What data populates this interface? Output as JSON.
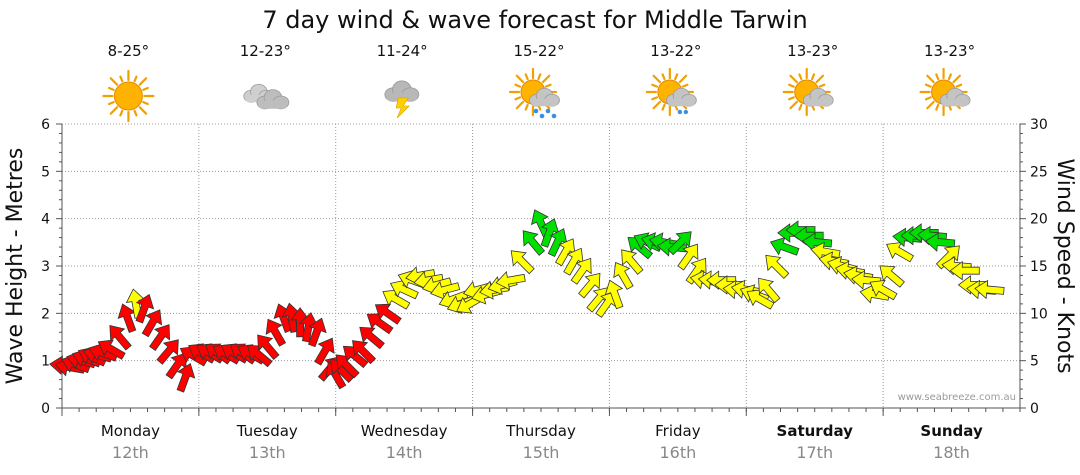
{
  "page": {
    "site_credit": "www.seabreeze.com.au"
  },
  "chart_data": {
    "type": "arrow-series",
    "title": "7 day wind & wave forecast for Middle Tarwin",
    "ylabel_left": "Wave Height - Metres",
    "ylabel_right": "Wind Speed - Knots",
    "left_axis": {
      "range": [
        0,
        6
      ],
      "ticks": [
        "0",
        "1",
        "2",
        "3",
        "4",
        "5",
        "6"
      ]
    },
    "right_axis": {
      "range": [
        0,
        30
      ],
      "ticks": [
        "0",
        "5",
        "10",
        "15",
        "20",
        "25",
        "30"
      ]
    },
    "days": [
      {
        "name": "Monday",
        "date": "12th",
        "temp": "8-25°",
        "icon": "sunny-icon",
        "bold": false
      },
      {
        "name": "Tuesday",
        "date": "13th",
        "temp": "12-23°",
        "icon": "cloudy-icon",
        "bold": false
      },
      {
        "name": "Wednesday",
        "date": "14th",
        "temp": "11-24°",
        "icon": "thunderstorm-icon",
        "bold": false
      },
      {
        "name": "Thursday",
        "date": "15th",
        "temp": "15-22°",
        "icon": "showers-icon",
        "bold": false
      },
      {
        "name": "Friday",
        "date": "16th",
        "temp": "13-22°",
        "icon": "light-rain-icon",
        "bold": false
      },
      {
        "name": "Saturday",
        "date": "17th",
        "temp": "13-23°",
        "icon": "partly-cloudy-icon",
        "bold": true
      },
      {
        "name": "Sunday",
        "date": "18th",
        "temp": "13-23°",
        "icon": "partly-cloudy-icon",
        "bold": true
      }
    ],
    "wind_color_scale": {
      "light": "#ff0000",
      "moderate": "#ffff00",
      "strong": "#00e000"
    },
    "wind_series": [
      {
        "t": 0.02,
        "kn": 4.5,
        "dir": 95
      },
      {
        "t": 0.06,
        "kn": 4.3,
        "dir": 100
      },
      {
        "t": 0.1,
        "kn": 4.6,
        "dir": 110
      },
      {
        "t": 0.14,
        "kn": 5.0,
        "dir": 105
      },
      {
        "t": 0.18,
        "kn": 5.2,
        "dir": 110
      },
      {
        "t": 0.22,
        "kn": 5.4,
        "dir": 115
      },
      {
        "t": 0.26,
        "kn": 5.6,
        "dir": 105
      },
      {
        "t": 0.3,
        "kn": 5.8,
        "dir": 110
      },
      {
        "t": 0.36,
        "kn": 6.2,
        "dir": 120
      },
      {
        "t": 0.42,
        "kn": 7.5,
        "dir": 140
      },
      {
        "t": 0.48,
        "kn": 9.5,
        "dir": 160
      },
      {
        "t": 0.54,
        "kn": 11.0,
        "dir": 170
      },
      {
        "t": 0.6,
        "kn": 10.5,
        "dir": 200
      },
      {
        "t": 0.66,
        "kn": 9.0,
        "dir": 210
      },
      {
        "t": 0.72,
        "kn": 7.5,
        "dir": 215
      },
      {
        "t": 0.78,
        "kn": 6.0,
        "dir": 220
      },
      {
        "t": 0.84,
        "kn": 4.5,
        "dir": 215
      },
      {
        "t": 0.9,
        "kn": 3.2,
        "dir": 200
      },
      {
        "t": 0.96,
        "kn": 5.5,
        "dir": 120
      },
      {
        "t": 1.02,
        "kn": 5.8,
        "dir": 120
      },
      {
        "t": 1.08,
        "kn": 5.8,
        "dir": 120
      },
      {
        "t": 1.14,
        "kn": 5.8,
        "dir": 125
      },
      {
        "t": 1.2,
        "kn": 5.7,
        "dir": 120
      },
      {
        "t": 1.26,
        "kn": 5.8,
        "dir": 120
      },
      {
        "t": 1.32,
        "kn": 5.8,
        "dir": 125
      },
      {
        "t": 1.38,
        "kn": 5.7,
        "dir": 120
      },
      {
        "t": 1.44,
        "kn": 5.6,
        "dir": 130
      },
      {
        "t": 1.5,
        "kn": 6.5,
        "dir": 140
      },
      {
        "t": 1.56,
        "kn": 8.0,
        "dir": 150
      },
      {
        "t": 1.62,
        "kn": 9.5,
        "dir": 160
      },
      {
        "t": 1.68,
        "kn": 9.5,
        "dir": 170
      },
      {
        "t": 1.74,
        "kn": 9.0,
        "dir": 180
      },
      {
        "t": 1.8,
        "kn": 8.5,
        "dir": 190
      },
      {
        "t": 1.86,
        "kn": 8.0,
        "dir": 200
      },
      {
        "t": 1.92,
        "kn": 6.0,
        "dir": 210
      },
      {
        "t": 1.96,
        "kn": 4.2,
        "dir": 220
      },
      {
        "t": 2.0,
        "kn": 3.5,
        "dir": 150
      },
      {
        "t": 2.04,
        "kn": 4.0,
        "dir": 135
      },
      {
        "t": 2.08,
        "kn": 4.5,
        "dir": 135
      },
      {
        "t": 2.14,
        "kn": 5.5,
        "dir": 130
      },
      {
        "t": 2.2,
        "kn": 6.0,
        "dir": 135
      },
      {
        "t": 2.26,
        "kn": 7.5,
        "dir": 130
      },
      {
        "t": 2.32,
        "kn": 9.0,
        "dir": 125
      },
      {
        "t": 2.38,
        "kn": 10.0,
        "dir": 125
      },
      {
        "t": 2.44,
        "kn": 11.5,
        "dir": 120
      },
      {
        "t": 2.5,
        "kn": 12.5,
        "dir": 115
      },
      {
        "t": 2.56,
        "kn": 13.5,
        "dir": 110
      },
      {
        "t": 2.62,
        "kn": 14.0,
        "dir": 80
      },
      {
        "t": 2.68,
        "kn": 13.5,
        "dir": 80
      },
      {
        "t": 2.74,
        "kn": 13.0,
        "dir": 75
      },
      {
        "t": 2.8,
        "kn": 12.5,
        "dir": 75
      },
      {
        "t": 2.86,
        "kn": 11.5,
        "dir": 70
      },
      {
        "t": 2.92,
        "kn": 11.0,
        "dir": 70
      },
      {
        "t": 2.98,
        "kn": 11.0,
        "dir": 60
      },
      {
        "t": 3.04,
        "kn": 12.5,
        "dir": 75
      },
      {
        "t": 3.1,
        "kn": 12.0,
        "dir": 75
      },
      {
        "t": 3.16,
        "kn": 12.5,
        "dir": 80
      },
      {
        "t": 3.22,
        "kn": 13.0,
        "dir": 75
      },
      {
        "t": 3.28,
        "kn": 13.5,
        "dir": 80
      },
      {
        "t": 3.36,
        "kn": 15.5,
        "dir": 135
      },
      {
        "t": 3.44,
        "kn": 17.5,
        "dir": 140
      },
      {
        "t": 3.5,
        "kn": 19.5,
        "dir": 155
      },
      {
        "t": 3.56,
        "kn": 18.5,
        "dir": 200
      },
      {
        "t": 3.62,
        "kn": 17.5,
        "dir": 205
      },
      {
        "t": 3.68,
        "kn": 16.5,
        "dir": 210
      },
      {
        "t": 3.74,
        "kn": 15.5,
        "dir": 210
      },
      {
        "t": 3.8,
        "kn": 14.5,
        "dir": 215
      },
      {
        "t": 3.86,
        "kn": 13.0,
        "dir": 220
      },
      {
        "t": 3.92,
        "kn": 11.5,
        "dir": 220
      },
      {
        "t": 3.98,
        "kn": 11.0,
        "dir": 215
      },
      {
        "t": 4.04,
        "kn": 12.0,
        "dir": 160
      },
      {
        "t": 4.1,
        "kn": 14.0,
        "dir": 150
      },
      {
        "t": 4.16,
        "kn": 15.5,
        "dir": 140
      },
      {
        "t": 4.22,
        "kn": 17.0,
        "dir": 130
      },
      {
        "t": 4.28,
        "kn": 17.5,
        "dir": 115
      },
      {
        "t": 4.34,
        "kn": 17.5,
        "dir": 105
      },
      {
        "t": 4.4,
        "kn": 17.5,
        "dir": 100
      },
      {
        "t": 4.46,
        "kn": 17.0,
        "dir": 95
      },
      {
        "t": 4.52,
        "kn": 17.5,
        "dir": 225
      },
      {
        "t": 4.58,
        "kn": 16.0,
        "dir": 215
      },
      {
        "t": 4.64,
        "kn": 14.5,
        "dir": 215
      },
      {
        "t": 4.7,
        "kn": 13.5,
        "dir": 100
      },
      {
        "t": 4.76,
        "kn": 13.5,
        "dir": 95
      },
      {
        "t": 4.82,
        "kn": 13.5,
        "dir": 90
      },
      {
        "t": 4.88,
        "kn": 13.0,
        "dir": 90
      },
      {
        "t": 4.94,
        "kn": 12.5,
        "dir": 95
      },
      {
        "t": 5.0,
        "kn": 12.5,
        "dir": 100
      },
      {
        "t": 5.06,
        "kn": 12.0,
        "dir": 110
      },
      {
        "t": 5.1,
        "kn": 11.5,
        "dir": 120
      },
      {
        "t": 5.16,
        "kn": 12.5,
        "dir": 140
      },
      {
        "t": 5.22,
        "kn": 15.0,
        "dir": 135
      },
      {
        "t": 5.28,
        "kn": 17.0,
        "dir": 110
      },
      {
        "t": 5.34,
        "kn": 18.5,
        "dir": 90
      },
      {
        "t": 5.4,
        "kn": 18.8,
        "dir": 90
      },
      {
        "t": 5.46,
        "kn": 18.2,
        "dir": 90
      },
      {
        "t": 5.52,
        "kn": 17.5,
        "dir": 95
      },
      {
        "t": 5.58,
        "kn": 16.5,
        "dir": 100
      },
      {
        "t": 5.64,
        "kn": 15.5,
        "dir": 100
      },
      {
        "t": 5.7,
        "kn": 15.0,
        "dir": 105
      },
      {
        "t": 5.76,
        "kn": 14.5,
        "dir": 100
      },
      {
        "t": 5.82,
        "kn": 14.0,
        "dir": 100
      },
      {
        "t": 5.88,
        "kn": 13.5,
        "dir": 95
      },
      {
        "t": 5.94,
        "kn": 12.0,
        "dir": 100
      },
      {
        "t": 6.0,
        "kn": 12.5,
        "dir": 120
      },
      {
        "t": 6.06,
        "kn": 14.0,
        "dir": 130
      },
      {
        "t": 6.12,
        "kn": 16.5,
        "dir": 120
      },
      {
        "t": 6.18,
        "kn": 18.0,
        "dir": 95
      },
      {
        "t": 6.24,
        "kn": 18.2,
        "dir": 90
      },
      {
        "t": 6.3,
        "kn": 18.5,
        "dir": 90
      },
      {
        "t": 6.36,
        "kn": 18.2,
        "dir": 95
      },
      {
        "t": 6.42,
        "kn": 17.5,
        "dir": 95
      },
      {
        "t": 6.48,
        "kn": 16.0,
        "dir": 225
      },
      {
        "t": 6.54,
        "kn": 15.0,
        "dir": 95
      },
      {
        "t": 6.6,
        "kn": 14.5,
        "dir": 90
      },
      {
        "t": 6.66,
        "kn": 13.0,
        "dir": 90
      },
      {
        "t": 6.72,
        "kn": 12.5,
        "dir": 95
      },
      {
        "t": 6.78,
        "kn": 12.5,
        "dir": 95
      }
    ]
  }
}
